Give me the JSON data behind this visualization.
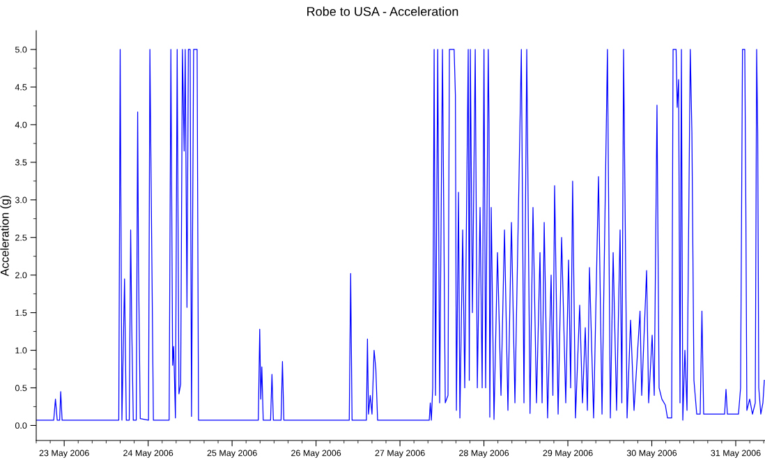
{
  "chart_data": {
    "type": "line",
    "title": "Robe to USA - Acceleration",
    "ylabel": "Acceleration (g)",
    "grid": false,
    "marker": "none",
    "line_style": "solid",
    "xlim": [
      "2006-05-22T16:00",
      "2006-05-31T08:22"
    ],
    "ylim": [
      -0.2,
      5.25
    ],
    "yticks": [
      {
        "value": 0,
        "label": "0.0"
      },
      {
        "value": 0.25,
        "label": null
      },
      {
        "value": 0.5,
        "label": "0.5"
      },
      {
        "value": 0.75,
        "label": null
      },
      {
        "value": 1,
        "label": "1.0"
      },
      {
        "value": 1.25,
        "label": null
      },
      {
        "value": 1.5,
        "label": "1.5"
      },
      {
        "value": 1.75,
        "label": null
      },
      {
        "value": 2,
        "label": "2.0"
      },
      {
        "value": 2.25,
        "label": null
      },
      {
        "value": 2.5,
        "label": "2.5"
      },
      {
        "value": 2.75,
        "label": null
      },
      {
        "value": 3,
        "label": "3.0"
      },
      {
        "value": 3.25,
        "label": null
      },
      {
        "value": 3.5,
        "label": "3.5"
      },
      {
        "value": 3.75,
        "label": null
      },
      {
        "value": 4,
        "label": "4.0"
      },
      {
        "value": 4.25,
        "label": null
      },
      {
        "value": 4.5,
        "label": "4.5"
      },
      {
        "value": 4.75,
        "label": null
      },
      {
        "value": 5,
        "label": "5.0"
      }
    ],
    "xticks": [
      {
        "value": "2006-05-22T16:00",
        "label": null
      },
      {
        "value": "2006-05-22T20:00",
        "label": null
      },
      {
        "value": "2006-05-23",
        "label": "23 May 2006"
      },
      {
        "value": "2006-05-23T04:00",
        "label": null
      },
      {
        "value": "2006-05-23T08:00",
        "label": null
      },
      {
        "value": "2006-05-23T12:00",
        "label": null
      },
      {
        "value": "2006-05-23T16:00",
        "label": null
      },
      {
        "value": "2006-05-23T20:00",
        "label": null
      },
      {
        "value": "2006-05-24",
        "label": "24 May 2006"
      },
      {
        "value": "2006-05-24T04:00",
        "label": null
      },
      {
        "value": "2006-05-24T08:00",
        "label": null
      },
      {
        "value": "2006-05-24T12:00",
        "label": null
      },
      {
        "value": "2006-05-24T16:00",
        "label": null
      },
      {
        "value": "2006-05-24T20:00",
        "label": null
      },
      {
        "value": "2006-05-25",
        "label": "25 May 2006"
      },
      {
        "value": "2006-05-25T04:00",
        "label": null
      },
      {
        "value": "2006-05-25T08:00",
        "label": null
      },
      {
        "value": "2006-05-25T12:00",
        "label": null
      },
      {
        "value": "2006-05-25T16:00",
        "label": null
      },
      {
        "value": "2006-05-25T20:00",
        "label": null
      },
      {
        "value": "2006-05-26",
        "label": "26 May 2006"
      },
      {
        "value": "2006-05-26T04:00",
        "label": null
      },
      {
        "value": "2006-05-26T08:00",
        "label": null
      },
      {
        "value": "2006-05-26T12:00",
        "label": null
      },
      {
        "value": "2006-05-26T16:00",
        "label": null
      },
      {
        "value": "2006-05-26T20:00",
        "label": null
      },
      {
        "value": "2006-05-27",
        "label": "27 May 2006"
      },
      {
        "value": "2006-05-27T04:00",
        "label": null
      },
      {
        "value": "2006-05-27T08:00",
        "label": null
      },
      {
        "value": "2006-05-27T12:00",
        "label": null
      },
      {
        "value": "2006-05-27T16:00",
        "label": null
      },
      {
        "value": "2006-05-27T20:00",
        "label": null
      },
      {
        "value": "2006-05-28",
        "label": "28 May 2006"
      },
      {
        "value": "2006-05-28T04:00",
        "label": null
      },
      {
        "value": "2006-05-28T08:00",
        "label": null
      },
      {
        "value": "2006-05-28T12:00",
        "label": null
      },
      {
        "value": "2006-05-28T16:00",
        "label": null
      },
      {
        "value": "2006-05-28T20:00",
        "label": null
      },
      {
        "value": "2006-05-29",
        "label": "29 May 2006"
      },
      {
        "value": "2006-05-29T04:00",
        "label": null
      },
      {
        "value": "2006-05-29T08:00",
        "label": null
      },
      {
        "value": "2006-05-29T12:00",
        "label": null
      },
      {
        "value": "2006-05-29T16:00",
        "label": null
      },
      {
        "value": "2006-05-29T20:00",
        "label": null
      },
      {
        "value": "2006-05-30",
        "label": "30 May 2006"
      },
      {
        "value": "2006-05-30T04:00",
        "label": null
      },
      {
        "value": "2006-05-30T08:00",
        "label": null
      },
      {
        "value": "2006-05-30T12:00",
        "label": null
      },
      {
        "value": "2006-05-30T16:00",
        "label": null
      },
      {
        "value": "2006-05-30T20:00",
        "label": null
      },
      {
        "value": "2006-05-31",
        "label": "31 May 2006"
      },
      {
        "value": "2006-05-31T04:00",
        "label": null
      },
      {
        "value": "2006-05-31T08:00",
        "label": null
      }
    ],
    "series": [
      {
        "color": "#0000ff",
        "x": [
          "2006-05-22T16:00",
          "2006-05-22T21:00",
          "2006-05-22T21:30",
          "2006-05-22T22:00",
          "2006-05-22T22:42",
          "2006-05-22T23:00",
          "2006-05-22T23:24",
          "2006-05-23T15:36",
          "2006-05-23T16:00",
          "2006-05-23T16:30",
          "2006-05-23T17:15",
          "2006-05-23T17:45",
          "2006-05-23T18:36",
          "2006-05-23T19:00",
          "2006-05-23T19:18",
          "2006-05-23T19:45",
          "2006-05-23T20:36",
          "2006-05-23T21:00",
          "2006-05-23T21:15",
          "2006-05-23T21:45",
          "2006-05-24T00:06",
          "2006-05-24T00:30",
          "2006-05-24T01:00",
          "2006-05-24T01:30",
          "2006-05-24T06:00",
          "2006-05-24T06:30",
          "2006-05-24T07:00",
          "2006-05-24T07:18",
          "2006-05-24T07:48",
          "2006-05-24T08:18",
          "2006-05-24T08:48",
          "2006-05-24T09:18",
          "2006-05-24T09:48",
          "2006-05-24T10:18",
          "2006-05-24T10:36",
          "2006-05-24T11:06",
          "2006-05-24T11:30",
          "2006-05-24T12:00",
          "2006-05-24T12:24",
          "2006-05-24T13:00",
          "2006-05-24T14:00",
          "2006-05-24T14:24",
          "2006-05-25T07:30",
          "2006-05-25T07:54",
          "2006-05-25T08:12",
          "2006-05-25T08:30",
          "2006-05-25T08:54",
          "2006-05-25T11:00",
          "2006-05-25T11:24",
          "2006-05-25T11:48",
          "2006-05-25T14:00",
          "2006-05-25T14:24",
          "2006-05-25T14:48",
          "2006-05-26T09:30",
          "2006-05-26T09:54",
          "2006-05-26T10:18",
          "2006-05-26T14:24",
          "2006-05-26T14:42",
          "2006-05-26T15:00",
          "2006-05-26T15:30",
          "2006-05-26T16:00",
          "2006-05-26T16:36",
          "2006-05-26T17:06",
          "2006-05-26T17:36",
          "2006-05-27T08:22",
          "2006-05-27T08:40",
          "2006-05-27T08:58",
          "2006-05-27T09:22",
          "2006-05-27T09:46",
          "2006-05-27T10:10",
          "2006-05-27T10:48",
          "2006-05-27T11:21",
          "2006-05-27T12:09",
          "2006-05-27T12:57",
          "2006-05-27T13:44",
          "2006-05-27T14:08",
          "2006-05-27T15:29",
          "2006-05-27T15:51",
          "2006-05-27T16:08",
          "2006-05-27T16:44",
          "2006-05-27T17:08",
          "2006-05-27T17:56",
          "2006-05-27T18:31",
          "2006-05-27T19:31",
          "2006-05-27T19:49",
          "2006-05-27T20:07",
          "2006-05-27T20:43",
          "2006-05-27T21:31",
          "2006-05-27T22:07",
          "2006-05-27T22:54",
          "2006-05-27T23:30",
          "2006-05-28T00:01",
          "2006-05-28T00:30",
          "2006-05-28T01:14",
          "2006-05-28T01:28",
          "2006-05-28T01:41",
          "2006-05-28T02:05",
          "2006-05-28T02:53",
          "2006-05-28T03:53",
          "2006-05-28T04:53",
          "2006-05-28T05:53",
          "2006-05-28T06:52",
          "2006-05-28T07:52",
          "2006-05-28T08:52",
          "2006-05-28T10:42",
          "2006-05-28T11:27",
          "2006-05-28T12:15",
          "2006-05-28T13:11",
          "2006-05-28T14:02",
          "2006-05-28T15:02",
          "2006-05-28T16:02",
          "2006-05-28T16:38",
          "2006-05-28T17:14",
          "2006-05-28T18:13",
          "2006-05-28T19:13",
          "2006-05-28T19:43",
          "2006-05-28T20:13",
          "2006-05-28T21:13",
          "2006-05-28T22:13",
          "2006-05-28T23:24",
          "2006-05-29T00:12",
          "2006-05-29T00:48",
          "2006-05-29T01:22",
          "2006-05-29T02:11",
          "2006-05-29T03:23",
          "2006-05-29T04:11",
          "2006-05-29T04:59",
          "2006-05-29T05:35",
          "2006-05-29T06:11",
          "2006-05-29T07:22",
          "2006-05-29T08:46",
          "2006-05-29T09:46",
          "2006-05-29T11:19",
          "2006-05-29T12:09",
          "2006-05-29T12:57",
          "2006-05-29T13:56",
          "2006-05-29T14:56",
          "2006-05-29T15:26",
          "2006-05-29T15:56",
          "2006-05-29T16:56",
          "2006-05-29T17:56",
          "2006-05-29T18:55",
          "2006-05-29T20:38",
          "2006-05-29T21:07",
          "2006-05-29T22:31",
          "2006-05-29T23:06",
          "2006-05-30T00:06",
          "2006-05-30T00:42",
          "2006-05-30T01:29",
          "2006-05-30T02:05",
          "2006-05-30T02:53",
          "2006-05-30T03:53",
          "2006-05-30T04:29",
          "2006-05-30T05:41",
          "2006-05-30T06:05",
          "2006-05-30T06:57",
          "2006-05-30T07:16",
          "2006-05-30T07:40",
          "2006-05-30T08:04",
          "2006-05-30T08:28",
          "2006-05-30T08:52",
          "2006-05-30T09:28",
          "2006-05-30T10:04",
          "2006-05-30T11:00",
          "2006-05-30T11:28",
          "2006-05-30T12:03",
          "2006-05-30T12:51",
          "2006-05-30T13:50",
          "2006-05-30T14:20",
          "2006-05-30T14:50",
          "2006-05-30T20:49",
          "2006-05-30T21:13",
          "2006-05-30T21:37",
          "2006-05-31T00:47",
          "2006-05-31T01:23",
          "2006-05-31T01:56",
          "2006-05-31T02:35",
          "2006-05-31T02:53",
          "2006-05-31T03:11",
          "2006-05-31T03:59",
          "2006-05-31T04:47",
          "2006-05-31T05:35",
          "2006-05-31T05:59",
          "2006-05-31T06:17",
          "2006-05-31T06:35",
          "2006-05-31T07:10",
          "2006-05-31T07:46",
          "2006-05-31T08:10"
        ],
        "values": [
          0.07,
          0.07,
          0.35,
          0.07,
          0.07,
          0.45,
          0.07,
          0.07,
          5.0,
          0.07,
          1.95,
          0.07,
          0.07,
          2.6,
          1.35,
          0.07,
          0.07,
          4.17,
          2.1,
          0.09,
          0.07,
          5.0,
          2.5,
          0.07,
          0.07,
          5.0,
          0.8,
          1.05,
          0.1,
          5.0,
          0.42,
          0.55,
          5.0,
          3.65,
          5.0,
          1.57,
          5.0,
          5.0,
          0.12,
          5.0,
          5.0,
          0.07,
          0.07,
          1.28,
          0.35,
          0.78,
          0.07,
          0.07,
          0.68,
          0.07,
          0.07,
          0.85,
          0.07,
          0.07,
          2.02,
          0.07,
          0.07,
          1.15,
          0.15,
          0.4,
          0.15,
          1.0,
          0.75,
          0.07,
          0.07,
          0.3,
          0.07,
          0.5,
          5.0,
          0.4,
          5.0,
          0.3,
          5.0,
          0.3,
          0.4,
          5.0,
          5.0,
          4.39,
          0.2,
          3.1,
          0.1,
          2.6,
          0.5,
          5.0,
          0.6,
          5.0,
          1.5,
          5.0,
          0.5,
          2.9,
          0.5,
          5.0,
          0.5,
          5.0,
          4.01,
          0.11,
          2.9,
          0.08,
          2.3,
          0.4,
          2.6,
          0.2,
          2.7,
          0.3,
          5.0,
          0.3,
          5.0,
          0.16,
          2.9,
          0.3,
          2.3,
          0.3,
          2.7,
          0.1,
          2.0,
          0.4,
          3.19,
          0.15,
          2.5,
          0.3,
          2.2,
          0.5,
          3.25,
          0.1,
          1.6,
          0.3,
          1.3,
          0.2,
          2.1,
          0.1,
          3.31,
          0.15,
          5.0,
          0.1,
          2.3,
          0.2,
          2.6,
          0.3,
          5.0,
          0.1,
          1.4,
          0.2,
          1.52,
          0.4,
          2.06,
          0.3,
          1.2,
          0.4,
          4.26,
          0.5,
          0.35,
          0.27,
          0.1,
          0.1,
          5.0,
          5.0,
          4.23,
          4.6,
          0.3,
          5.0,
          0.07,
          1.0,
          0.2,
          5.0,
          3.9,
          0.6,
          0.15,
          0.15,
          1.52,
          0.15,
          0.15,
          0.48,
          0.15,
          0.15,
          0.5,
          5.0,
          5.0,
          2.93,
          0.2,
          0.35,
          0.15,
          0.3,
          5.0,
          3.9,
          0.5,
          0.15,
          0.3,
          0.6
        ]
      }
    ]
  }
}
